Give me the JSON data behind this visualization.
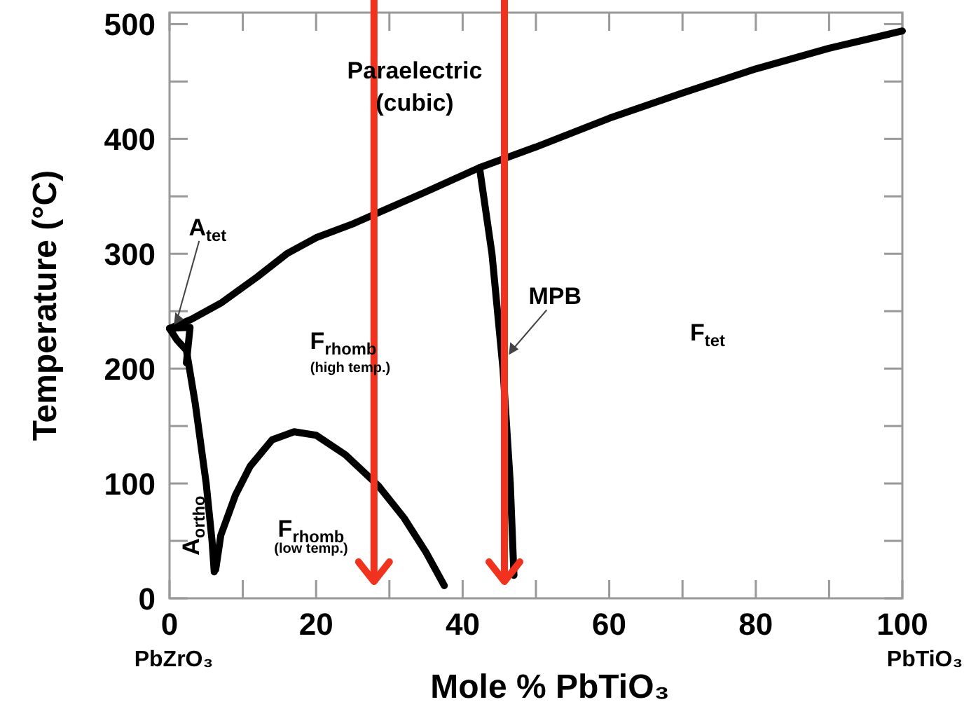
{
  "chart_data": {
    "type": "line",
    "xlabel": "Mole % PbTiO₃",
    "ylabel": "Temperature (°C)",
    "xlim": [
      0,
      100
    ],
    "ylim": [
      0,
      510
    ],
    "xticks": [
      0,
      {
        "value": 10,
        "label": null
      },
      20,
      {
        "value": 30,
        "label": null
      },
      40,
      {
        "value": 50,
        "label": null
      },
      60,
      {
        "value": 70,
        "label": null
      },
      80,
      {
        "value": 90,
        "label": null
      },
      100
    ],
    "yticks": [
      0,
      {
        "value": 50,
        "label": null
      },
      100,
      {
        "value": 150,
        "label": null
      },
      200,
      {
        "value": 250,
        "label": null
      },
      300,
      {
        "value": 350,
        "label": null
      },
      400,
      {
        "value": 450,
        "label": null
      },
      500
    ],
    "grid": false,
    "marker": "none",
    "line_style": "solid",
    "series": [
      {
        "color": "#000000",
        "x": [
          0,
          3,
          7,
          12,
          16,
          20,
          25,
          30,
          35,
          42.3,
          50,
          60,
          70,
          80,
          90,
          100
        ],
        "values": [
          235,
          243,
          257,
          280,
          300,
          314,
          326,
          340,
          354,
          375,
          393,
          418,
          440,
          461,
          479,
          494
        ]
      },
      {
        "color": "#000000",
        "x": [
          42.3,
          44,
          45.5,
          46.5,
          47
        ],
        "values": [
          375,
          300,
          200,
          100,
          20
        ]
      },
      {
        "color": "#000000",
        "x": [
          0,
          1,
          2.3,
          3.5,
          5,
          5.8,
          6.1
        ],
        "values": [
          235,
          225,
          216,
          170,
          100,
          50,
          23
        ]
      },
      {
        "color": "#000000",
        "x": [
          0,
          2.8,
          2.3
        ],
        "values": [
          235,
          236,
          205
        ]
      },
      {
        "color": "#000000",
        "x": [
          6.3,
          7,
          9,
          11,
          14,
          17,
          20,
          24,
          28.5,
          32,
          35,
          37.5
        ],
        "values": [
          25,
          55,
          90,
          115,
          138,
          145,
          142,
          125,
          98,
          70,
          40,
          11
        ]
      }
    ],
    "ref_lines": [
      {
        "axis": "x",
        "value": 27.9,
        "color": "#f0321e"
      },
      {
        "axis": "x",
        "value": 45.7,
        "color": "#f0321e"
      }
    ],
    "annotations": [
      "PbZrO₃",
      "PbTiO₃",
      "Paraelectric",
      "(cubic)",
      "F$_{rhomb}$",
      "(high temp.)",
      "F$_{tet}$",
      "A$_{ortho}$",
      "F$_{rhomb}$",
      "(low temp.)",
      {
        "text": "A$_{tet}$",
        "x": 0.6,
        "y": 238
      },
      {
        "text": "MPB",
        "x": 46.3,
        "y": 212
      }
    ]
  }
}
